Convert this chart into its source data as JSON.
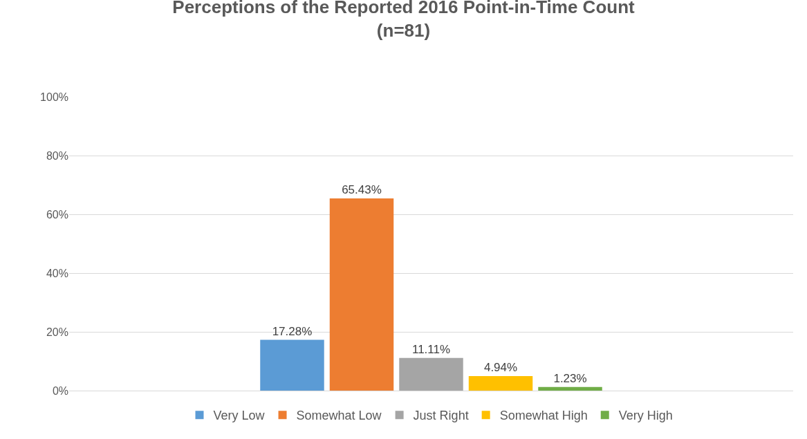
{
  "chart_data": {
    "type": "bar",
    "title": "Perceptions of the Reported 2016 Point-in-Time Count\n(n=81)",
    "categories": [
      null
    ],
    "series": [
      {
        "name": "Very Low",
        "color": "#5b9bd5",
        "values": [
          17.28
        ],
        "value_labels": [
          "17.28%"
        ]
      },
      {
        "name": "Somewhat Low",
        "color": "#ed7d31",
        "values": [
          65.43
        ],
        "value_labels": [
          "65.43%"
        ]
      },
      {
        "name": "Just Right",
        "color": "#a5a5a5",
        "values": [
          11.11
        ],
        "value_labels": [
          "11.11%"
        ]
      },
      {
        "name": "Somewhat High",
        "color": "#ffc000",
        "values": [
          4.94
        ],
        "value_labels": [
          "4.94%"
        ]
      },
      {
        "name": "Very High",
        "color": "#70ad47",
        "values": [
          1.23
        ],
        "value_labels": [
          "1.23%"
        ]
      }
    ],
    "ylim": [
      0,
      100
    ],
    "yticks": [
      {
        "value": 0,
        "label": "0%"
      },
      {
        "value": 20,
        "label": "20%"
      },
      {
        "value": 40,
        "label": "40%"
      },
      {
        "value": 60,
        "label": "60%"
      },
      {
        "value": 80,
        "label": "80%"
      },
      {
        "value": 100,
        "label": "100%"
      }
    ],
    "grid": "y",
    "legend": "bottom",
    "tick_labels": "y"
  }
}
